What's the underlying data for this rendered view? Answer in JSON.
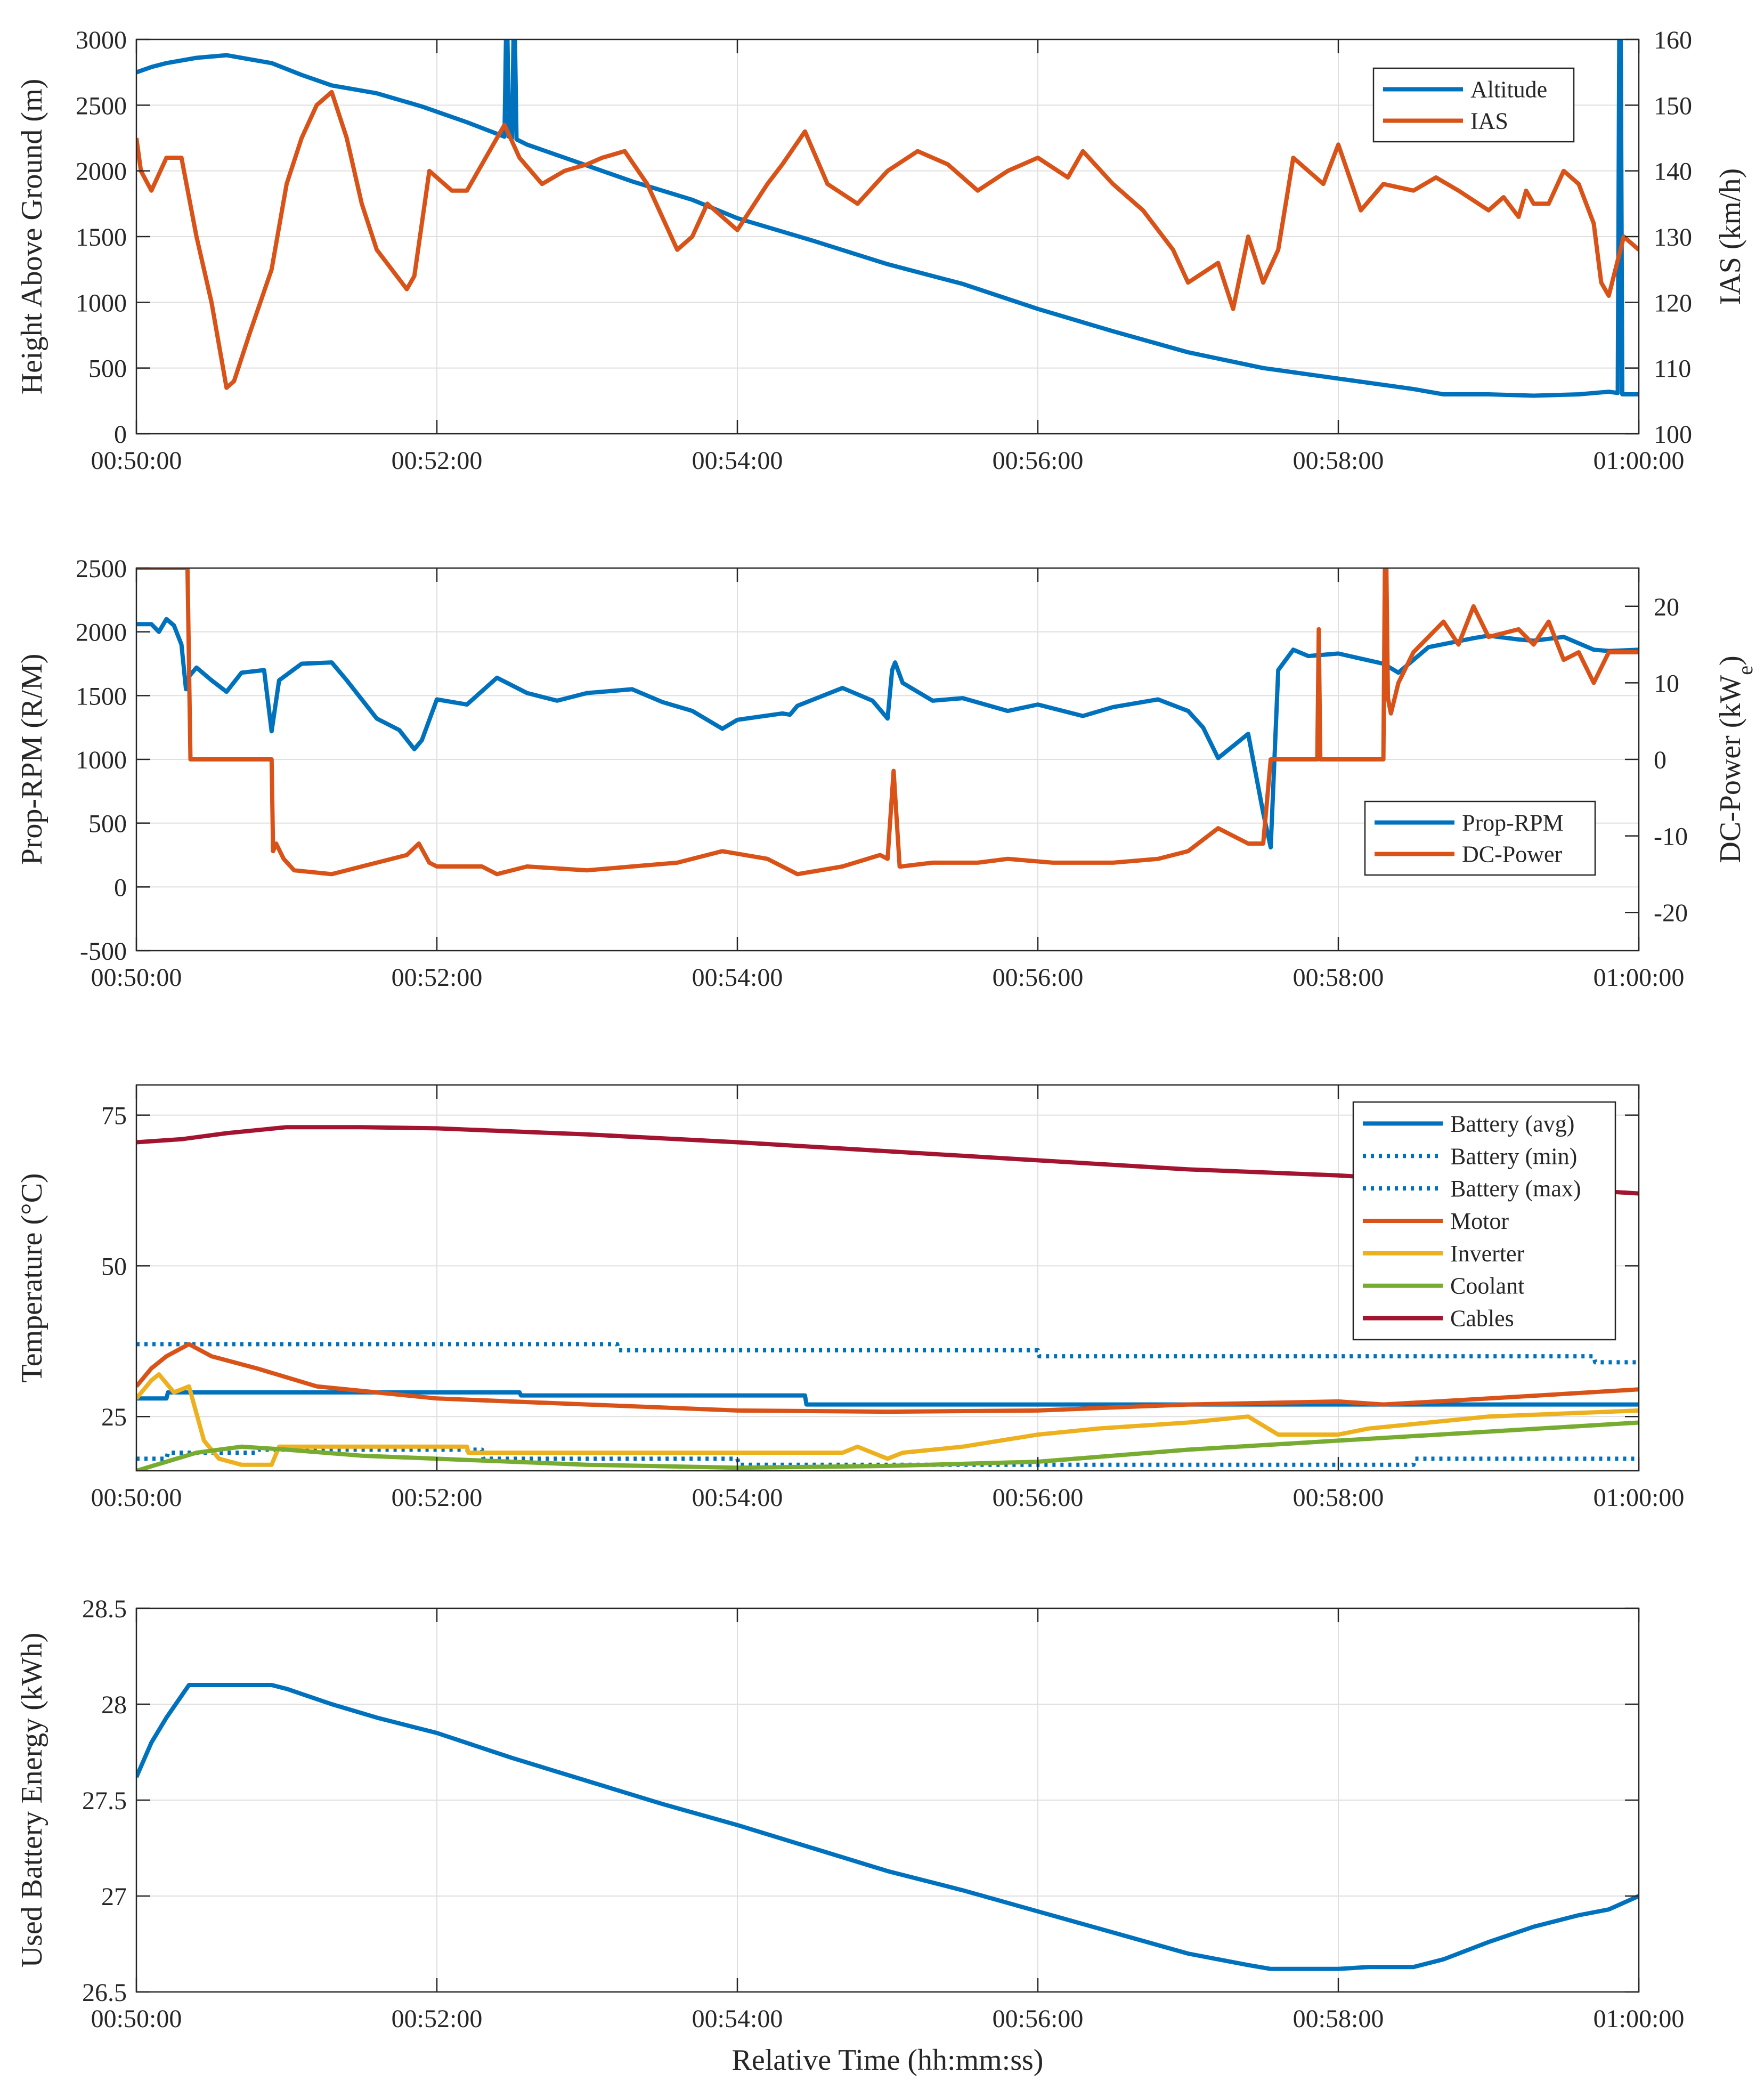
{
  "colors": {
    "blue": "#0072BD",
    "orange": "#D95319",
    "yellow": "#EDB120",
    "green": "#77AC30",
    "darkred": "#A2142F",
    "grid": "#DFDFDF",
    "axis": "#262626"
  },
  "figure": {
    "xlabel": "Relative Time (hh:mm:ss)"
  },
  "chart_data": [
    {
      "type": "line",
      "x_unit": "minutes",
      "xlim": [
        50,
        60
      ],
      "xticks": [
        50,
        52,
        54,
        56,
        58,
        60
      ],
      "xtick_labels": [
        "00:50:00",
        "00:52:00",
        "00:54:00",
        "00:56:00",
        "00:58:00",
        "01:00:00"
      ],
      "ylabel_left": "Height Above Ground (m)",
      "ylim_left": [
        0,
        3000
      ],
      "yticks_left": [
        0,
        500,
        1000,
        1500,
        2000,
        2500,
        3000
      ],
      "ytick_labels_left": [
        "0",
        "500",
        "1000",
        "1500",
        "2000",
        "2500",
        "3000"
      ],
      "ylabel_right": "IAS (km/h)",
      "ylim_right": [
        100,
        160
      ],
      "yticks_right": [
        100,
        110,
        120,
        130,
        140,
        150,
        160
      ],
      "ytick_labels_right": [
        "100",
        "110",
        "120",
        "130",
        "140",
        "150",
        "160"
      ],
      "legend_position": "top-right",
      "series": [
        {
          "name": "Altitude",
          "axis": "left",
          "color": "blue",
          "style": "solid",
          "x": [
            50,
            50.1,
            50.2,
            50.4,
            50.6,
            50.9,
            51.1,
            51.3,
            51.6,
            51.9,
            52.2,
            52.45,
            52.46,
            52.47,
            52.48,
            52.5,
            52.51,
            52.52,
            52.53,
            52.6,
            52.9,
            53.3,
            53.7,
            54.0,
            54.5,
            55.0,
            55.5,
            56.0,
            56.5,
            57.0,
            57.5,
            58.0,
            58.5,
            58.7,
            59.0,
            59.3,
            59.6,
            59.8,
            59.86,
            59.87,
            59.88,
            59.89,
            59.9,
            59.95,
            60
          ],
          "values": [
            2750,
            2790,
            2820,
            2860,
            2880,
            2820,
            2730,
            2650,
            2590,
            2490,
            2370,
            2260,
            3000,
            3000,
            2260,
            2250,
            3000,
            3000,
            2240,
            2200,
            2080,
            1920,
            1780,
            1640,
            1470,
            1290,
            1140,
            950,
            780,
            620,
            500,
            420,
            340,
            300,
            300,
            290,
            300,
            320,
            310,
            3000,
            3000,
            300,
            300,
            300,
            300
          ]
        },
        {
          "name": "IAS",
          "axis": "right",
          "color": "orange",
          "style": "solid",
          "x": [
            50,
            50.03,
            50.1,
            50.2,
            50.3,
            50.4,
            50.5,
            50.6,
            50.65,
            50.75,
            50.9,
            51.0,
            51.1,
            51.2,
            51.3,
            51.4,
            51.5,
            51.6,
            51.7,
            51.8,
            51.85,
            51.95,
            52.1,
            52.2,
            52.35,
            52.45,
            52.55,
            52.7,
            52.85,
            53.0,
            53.1,
            53.25,
            53.4,
            53.6,
            53.7,
            53.8,
            54.0,
            54.2,
            54.3,
            54.45,
            54.6,
            54.8,
            55.0,
            55.2,
            55.4,
            55.6,
            55.8,
            56.0,
            56.2,
            56.3,
            56.5,
            56.7,
            56.9,
            57.0,
            57.2,
            57.3,
            57.4,
            57.5,
            57.6,
            57.7,
            57.9,
            58.0,
            58.15,
            58.3,
            58.5,
            58.65,
            58.8,
            59.0,
            59.1,
            59.2,
            59.25,
            59.3,
            59.4,
            59.5,
            59.6,
            59.7,
            59.75,
            59.8,
            59.9,
            60
          ],
          "values": [
            145,
            140,
            137,
            142,
            142,
            130,
            120,
            107,
            108,
            115,
            125,
            138,
            145,
            150,
            152,
            145,
            135,
            128,
            125,
            122,
            124,
            140,
            137,
            137,
            143,
            147,
            142,
            138,
            140,
            141,
            142,
            143,
            138,
            128,
            130,
            135,
            131,
            138,
            141,
            146,
            138,
            135,
            140,
            143,
            141,
            137,
            140,
            142,
            139,
            143,
            138,
            134,
            128,
            123,
            126,
            119,
            130,
            123,
            128,
            142,
            138,
            144,
            134,
            138,
            137,
            139,
            137,
            134,
            136,
            133,
            137,
            135,
            135,
            140,
            138,
            132,
            123,
            121,
            130,
            128
          ]
        }
      ]
    },
    {
      "type": "line",
      "x_unit": "minutes",
      "xlim": [
        50,
        60
      ],
      "xticks": [
        50,
        52,
        54,
        56,
        58,
        60
      ],
      "xtick_labels": [
        "00:50:00",
        "00:52:00",
        "00:54:00",
        "00:56:00",
        "00:58:00",
        "01:00:00"
      ],
      "ylabel_left": "Prop-RPM (R/M)",
      "ylim_left": [
        -500,
        2500
      ],
      "yticks_left": [
        -500,
        0,
        500,
        1000,
        1500,
        2000,
        2500
      ],
      "ytick_labels_left": [
        "-500",
        "0",
        "500",
        "1000",
        "1500",
        "2000",
        "2500"
      ],
      "ylabel_right": "DC-Power (kWe)",
      "ylim_right": [
        -25,
        25
      ],
      "yticks_right": [
        -20,
        -10,
        0,
        10,
        20
      ],
      "ytick_labels_right": [
        "-20",
        "-10",
        "0",
        "10",
        "20"
      ],
      "legend_position": "bottom-right",
      "series": [
        {
          "name": "Prop-RPM",
          "axis": "left",
          "color": "blue",
          "style": "solid",
          "x": [
            50,
            50.1,
            50.15,
            50.2,
            50.25,
            50.3,
            50.33,
            50.35,
            50.4,
            50.5,
            50.6,
            50.7,
            50.85,
            50.9,
            50.95,
            51.1,
            51.3,
            51.4,
            51.6,
            51.75,
            51.85,
            51.9,
            52.0,
            52.2,
            52.4,
            52.6,
            52.8,
            53.0,
            53.3,
            53.5,
            53.7,
            53.9,
            54.0,
            54.3,
            54.35,
            54.4,
            54.7,
            54.9,
            55.0,
            55.03,
            55.05,
            55.1,
            55.3,
            55.5,
            55.8,
            56.0,
            56.3,
            56.5,
            56.8,
            57.0,
            57.1,
            57.2,
            57.4,
            57.5,
            57.55,
            57.6,
            57.7,
            57.8,
            58.0,
            58.3,
            58.4,
            58.6,
            58.9,
            59.0,
            59.2,
            59.3,
            59.5,
            59.7,
            59.8,
            60
          ],
          "values": [
            2060,
            2060,
            2000,
            2100,
            2050,
            1900,
            1550,
            1650,
            1720,
            1620,
            1530,
            1680,
            1700,
            1220,
            1620,
            1750,
            1760,
            1620,
            1320,
            1230,
            1080,
            1150,
            1470,
            1430,
            1640,
            1520,
            1460,
            1520,
            1550,
            1450,
            1380,
            1240,
            1310,
            1360,
            1350,
            1420,
            1560,
            1460,
            1320,
            1700,
            1760,
            1600,
            1460,
            1480,
            1380,
            1430,
            1340,
            1410,
            1470,
            1380,
            1250,
            1010,
            1200,
            580,
            310,
            1700,
            1860,
            1810,
            1830,
            1750,
            1680,
            1880,
            1950,
            1970,
            1940,
            1930,
            1960,
            1860,
            1850,
            1860
          ]
        },
        {
          "name": "DC-Power",
          "axis": "right",
          "color": "orange",
          "style": "solid",
          "x": [
            50,
            50.33,
            50.34,
            50.36,
            50.37,
            50.9,
            50.91,
            50.93,
            50.98,
            51.05,
            51.3,
            51.5,
            51.8,
            51.88,
            51.95,
            52.0,
            52.3,
            52.4,
            52.6,
            53.0,
            53.3,
            53.6,
            53.9,
            54.2,
            54.4,
            54.7,
            54.95,
            55.0,
            55.04,
            55.08,
            55.09,
            55.3,
            55.6,
            55.8,
            56.1,
            56.5,
            56.8,
            57.0,
            57.2,
            57.4,
            57.5,
            57.55,
            57.86,
            57.87,
            57.88,
            57.89,
            57.9,
            58.3,
            58.31,
            58.32,
            58.33,
            58.35,
            58.4,
            58.5,
            58.7,
            58.8,
            58.9,
            59.0,
            59.2,
            59.3,
            59.4,
            59.5,
            59.6,
            59.7,
            59.8,
            60
          ],
          "values": [
            25,
            25,
            25,
            0,
            0,
            0,
            -12,
            -11,
            -13,
            -14.5,
            -15,
            -14,
            -12.5,
            -11,
            -13.5,
            -14,
            -14,
            -15,
            -14,
            -14.5,
            -14,
            -13.5,
            -12,
            -13,
            -15,
            -14,
            -12.5,
            -13,
            -1.5,
            -14,
            -14,
            -13.5,
            -13.5,
            -13,
            -13.5,
            -13.5,
            -13,
            -12,
            -9,
            -11,
            -11,
            0,
            0,
            17,
            0,
            0,
            0,
            0,
            25,
            25,
            8,
            6,
            10,
            14,
            18,
            15,
            20,
            16,
            17,
            15,
            18,
            13,
            14,
            10,
            14,
            14
          ]
        }
      ]
    },
    {
      "type": "line",
      "x_unit": "minutes",
      "xlim": [
        50,
        60
      ],
      "xticks": [
        50,
        52,
        54,
        56,
        58,
        60
      ],
      "xtick_labels": [
        "00:50:00",
        "00:52:00",
        "00:54:00",
        "00:56:00",
        "00:58:00",
        "01:00:00"
      ],
      "ylabel_left": "Temperature (°C)",
      "ylim_left": [
        16,
        80
      ],
      "yticks_left": [
        25,
        50,
        75
      ],
      "ytick_labels_left": [
        "25",
        "50",
        "75"
      ],
      "legend_position": "top-right",
      "series": [
        {
          "name": "Battery (avg)",
          "color": "blue",
          "style": "solid",
          "x": [
            50,
            50.2,
            50.21,
            52.55,
            52.56,
            54.45,
            54.46,
            60
          ],
          "values": [
            28,
            28,
            29,
            29,
            28.5,
            28.5,
            27,
            27
          ]
        },
        {
          "name": "Battery (min)",
          "color": "blue",
          "style": "dotted",
          "x": [
            50,
            50.2,
            50.21,
            50.8,
            50.81,
            52.3,
            52.31,
            54.0,
            54.01,
            58.5,
            58.51,
            60
          ],
          "values": [
            18,
            18,
            19,
            19,
            19.5,
            19.5,
            18,
            18,
            17,
            17,
            18,
            18
          ]
        },
        {
          "name": "Battery (max)",
          "color": "blue",
          "style": "dotted",
          "x": [
            50,
            53.2,
            53.21,
            56.0,
            56.01,
            59.7,
            59.71,
            60
          ],
          "values": [
            37,
            37,
            36,
            36,
            35,
            35,
            34,
            34
          ]
        },
        {
          "name": "Motor",
          "color": "orange",
          "style": "solid",
          "x": [
            50,
            50.1,
            50.2,
            50.35,
            50.5,
            50.8,
            51.2,
            52.0,
            53.0,
            54.0,
            55.0,
            56.0,
            57.0,
            58.0,
            58.3,
            59.0,
            60
          ],
          "values": [
            30,
            33,
            35,
            37,
            35,
            33,
            30,
            28,
            27,
            26,
            25.8,
            26,
            27,
            27.5,
            27,
            28,
            29.5
          ]
        },
        {
          "name": "Inverter",
          "color": "yellow",
          "style": "solid",
          "x": [
            50,
            50.1,
            50.15,
            50.25,
            50.35,
            50.45,
            50.55,
            50.7,
            50.9,
            50.95,
            51.3,
            52.2,
            52.21,
            54.7,
            54.8,
            55.0,
            55.1,
            55.5,
            56.0,
            56.4,
            57.0,
            57.4,
            57.6,
            58.0,
            58.2,
            58.6,
            59.0,
            60
          ],
          "values": [
            28,
            31,
            32,
            29,
            30,
            21,
            18,
            17,
            17,
            20,
            20,
            20,
            19,
            19,
            20,
            18,
            19,
            20,
            22,
            23,
            24,
            25,
            22,
            22,
            23,
            24,
            25,
            26
          ]
        },
        {
          "name": "Coolant",
          "color": "green",
          "style": "solid",
          "x": [
            50,
            50.2,
            50.4,
            50.7,
            51.0,
            51.5,
            52.0,
            53.0,
            54.0,
            55.0,
            56.0,
            57.0,
            58.0,
            59.0,
            60
          ],
          "values": [
            16,
            17.5,
            19,
            20,
            19.5,
            18.5,
            18,
            17,
            16.5,
            16.8,
            17.5,
            19.5,
            21,
            22.5,
            24
          ]
        },
        {
          "name": "Cables",
          "color": "darkred",
          "style": "solid",
          "x": [
            50,
            50.3,
            50.6,
            51.0,
            51.5,
            52.0,
            53.0,
            54.0,
            55.0,
            56.0,
            57.0,
            58.0,
            59.0,
            60
          ],
          "values": [
            70.5,
            71,
            72,
            73,
            73,
            72.8,
            71.8,
            70.5,
            69,
            67.5,
            66,
            65,
            63.5,
            62
          ]
        }
      ]
    },
    {
      "type": "line",
      "x_unit": "minutes",
      "xlim": [
        50,
        60
      ],
      "xticks": [
        50,
        52,
        54,
        56,
        58,
        60
      ],
      "xtick_labels": [
        "00:50:00",
        "00:52:00",
        "00:54:00",
        "00:56:00",
        "00:58:00",
        "01:00:00"
      ],
      "ylabel_left": "Used Battery Energy (kWh)",
      "ylim_left": [
        26.5,
        28.5
      ],
      "yticks_left": [
        26.5,
        27,
        27.5,
        28,
        28.5
      ],
      "ytick_labels_left": [
        "26.5",
        "27",
        "27.5",
        "28",
        "28.5"
      ],
      "xlabel": "Relative Time (hh:mm:ss)",
      "series": [
        {
          "name": "Used Battery Energy",
          "color": "blue",
          "style": "solid",
          "x": [
            50,
            50.1,
            50.2,
            50.35,
            50.9,
            51.0,
            51.3,
            51.6,
            52.0,
            52.5,
            53.0,
            53.5,
            54.0,
            54.5,
            55.0,
            55.5,
            56.0,
            56.5,
            57.0,
            57.4,
            57.55,
            58.0,
            58.2,
            58.5,
            58.7,
            59.0,
            59.3,
            59.6,
            59.8,
            60
          ],
          "values": [
            27.62,
            27.8,
            27.93,
            28.1,
            28.1,
            28.08,
            28.0,
            27.93,
            27.85,
            27.72,
            27.6,
            27.48,
            27.37,
            27.25,
            27.13,
            27.03,
            26.92,
            26.81,
            26.7,
            26.64,
            26.62,
            26.62,
            26.63,
            26.63,
            26.67,
            26.76,
            26.84,
            26.9,
            26.93,
            27.0
          ]
        }
      ]
    }
  ]
}
